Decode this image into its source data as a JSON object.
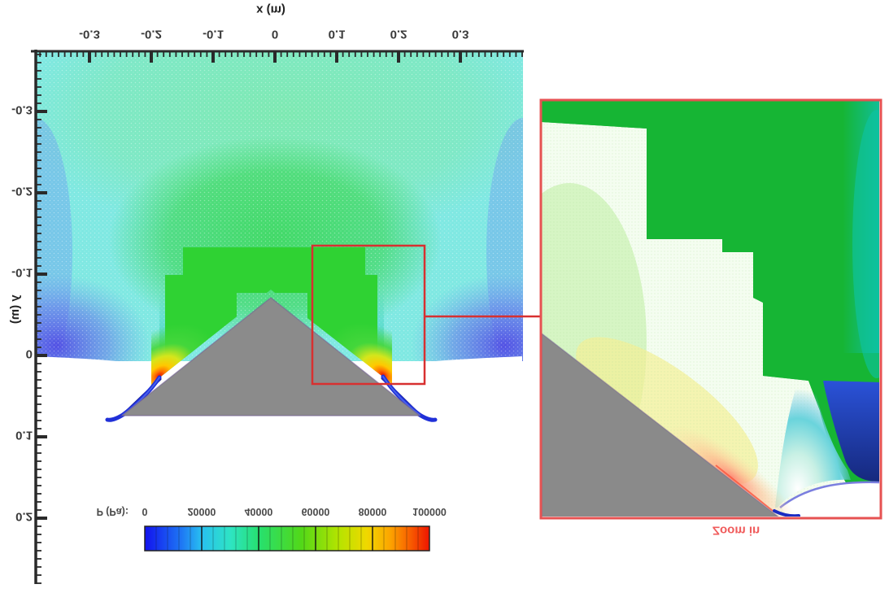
{
  "figure": {
    "description": "CFD pressure contour plot of supersonic flow over a triangular wedge with mesh-refinement zoom inset",
    "text_appears_flipped": true
  },
  "axes": {
    "x_label": "x (m)",
    "y_label": "y (m)",
    "x_ticks": [
      "-0.3",
      "-0.2",
      "-0.1",
      "0",
      "0.1",
      "0.2",
      "0.3"
    ],
    "y_ticks": [
      "-0.3",
      "-0.2",
      "-0.1",
      "0",
      "0.1",
      "0.2"
    ]
  },
  "colorbar": {
    "label": "P (Pa):",
    "ticks": [
      "0",
      "20000",
      "40000",
      "60000",
      "80000",
      "100000"
    ],
    "gradient": [
      "#1414ee",
      "#28c0f0",
      "#26e070",
      "#52d818",
      "#f0d800",
      "#fca600",
      "#ee1400"
    ]
  },
  "inset": {
    "caption": "Zoom in",
    "border_color": "#e65252",
    "caption_color": "#f05c5c"
  },
  "colors": {
    "field_cyan": "#7fe8e2",
    "field_pale_green": "#7de9b4",
    "dome_green": "#46da6e",
    "refined_green": "#2fd233",
    "coarse_mesh_green": "#16b534",
    "hot_yellow": "#ffc800",
    "hot_orange": "#ff7300",
    "hot_red": "#e41600",
    "low_pressure_blue": "#504be4",
    "curl_blue": "#2030d8",
    "wedge_gray": "#8a8a8a",
    "accent_red": "#d83030"
  },
  "chart_data": {
    "type": "heatmap",
    "subtype": "contour-field",
    "xlabel": "x (m)",
    "ylabel": "y (m)",
    "x_range": [
      -0.39,
      0.4
    ],
    "y_range": [
      -0.37,
      0.28
    ],
    "grid": false,
    "colorbar": {
      "label": "P (Pa):",
      "min": 0,
      "max": 100000,
      "tick_step": 20000,
      "levels": [
        0,
        20000,
        40000,
        60000,
        80000,
        100000
      ]
    },
    "wedge_geometry": {
      "apex_xy": [
        0.0,
        -0.07
      ],
      "base_left_xy": [
        -0.245,
        0.074
      ],
      "base_right_xy": [
        0.235,
        0.074
      ]
    },
    "features": [
      {
        "name": "ambient-field",
        "pressure_pa": "30000-45000",
        "appearance": "cyan to pale green far field"
      },
      {
        "name": "refinement-staircase",
        "pressure_pa": "45000-55000",
        "appearance": "bright green stepped mesh-refinement blocks around wedge"
      },
      {
        "name": "stagnation-hot-spots",
        "pressure_pa": "90000-100000",
        "xy": [
          [
            -0.185,
            0.027
          ],
          [
            0.18,
            0.027
          ]
        ],
        "appearance": "yellow-orange-red fans at lower wedge slopes"
      },
      {
        "name": "expansion-wake-streaks",
        "pressure_pa": "0-10000",
        "appearance": "dark blue curls past wedge base corners"
      },
      {
        "name": "low-pressure-lobes",
        "pressure_pa": "5000-15000",
        "appearance": "violet-blue lobes at lower left/right far field"
      }
    ],
    "zoom_region": {
      "x": [
        0.06,
        0.24
      ],
      "y": [
        -0.135,
        0.035
      ]
    },
    "inset_caption": "Zoom in",
    "inset_content": "magnified view of right stagnation region showing coarse hexagonal mesh (dark green dots), refined fine-mesh staircase, and rainbow pressure fan at wedge surface"
  }
}
